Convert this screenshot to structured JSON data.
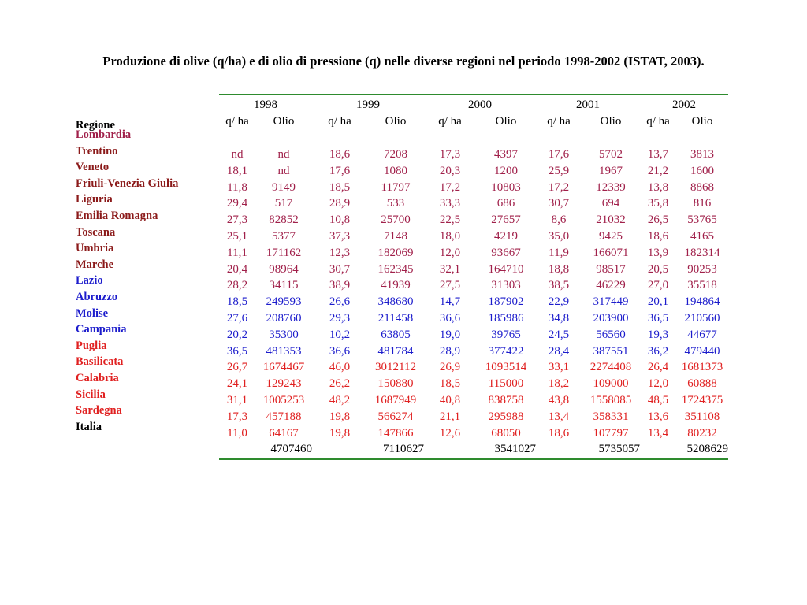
{
  "title": "Produzione di olive (q/ha) e di olio di pressione (q) nelle diverse regioni nel periodo 1998-2002 (ISTAT, 2003).",
  "regione_header": "Regione",
  "colors": {
    "dark_red": "#8b1a1a",
    "crimson": "#a0204a",
    "blue": "#1c1ccc",
    "red": "#e02020",
    "rule": "#2e8b2e"
  },
  "years": [
    "1998",
    "1999",
    "2000",
    "2001",
    "2002"
  ],
  "sub_headers": [
    "q/ ha",
    "Olio",
    "q/ ha",
    "Olio",
    "q/ ha",
    "Olio",
    "q/ ha",
    "Olio",
    "q/ ha",
    "Olio"
  ],
  "regions": [
    {
      "name": "Lombardia",
      "color": "#a0204a"
    },
    {
      "name": "Trentino",
      "color": "#8b1a1a"
    },
    {
      "name": "Veneto",
      "color": "#8b1a1a"
    },
    {
      "name": "Friuli-Venezia Giulia",
      "color": "#8b1a1a"
    },
    {
      "name": "Liguria",
      "color": "#8b1a1a"
    },
    {
      "name": "Emilia Romagna",
      "color": "#8b1a1a"
    },
    {
      "name": "Toscana",
      "color": "#8b1a1a"
    },
    {
      "name": "Umbria",
      "color": "#8b1a1a"
    },
    {
      "name": "Marche",
      "color": "#8b1a1a"
    },
    {
      "name": "Lazio",
      "color": "#1c1ccc"
    },
    {
      "name": "Abruzzo",
      "color": "#1c1ccc"
    },
    {
      "name": "Molise",
      "color": "#1c1ccc"
    },
    {
      "name": "Campania",
      "color": "#1c1ccc"
    },
    {
      "name": "Puglia",
      "color": "#e02020"
    },
    {
      "name": "Basilicata",
      "color": "#e02020"
    },
    {
      "name": "Calabria",
      "color": "#e02020"
    },
    {
      "name": "Sicilia",
      "color": "#e02020"
    },
    {
      "name": "Sardegna",
      "color": "#e02020"
    },
    {
      "name": "Italia",
      "color": "#000000"
    }
  ],
  "rows": [
    {
      "color": "#a0204a",
      "values": [
        "nd",
        "nd",
        "18,6",
        "7208",
        "17,3",
        "4397",
        "17,6",
        "5702",
        "13,7",
        "3813"
      ]
    },
    {
      "color": "#a0204a",
      "values": [
        "18,1",
        "nd",
        "17,6",
        "1080",
        "20,3",
        "1200",
        "25,9",
        "1967",
        "21,2",
        "1600"
      ]
    },
    {
      "color": "#a0204a",
      "values": [
        "11,8",
        "9149",
        "18,5",
        "11797",
        "17,2",
        "10803",
        "17,2",
        "12339",
        "13,8",
        "8868"
      ]
    },
    {
      "color": "#a0204a",
      "values": [
        "29,4",
        "517",
        "28,9",
        "533",
        "33,3",
        "686",
        "30,7",
        "694",
        "35,8",
        "816"
      ]
    },
    {
      "color": "#a0204a",
      "values": [
        "27,3",
        "82852",
        "10,8",
        "25700",
        "22,5",
        "27657",
        "8,6",
        "21032",
        "26,5",
        "53765"
      ]
    },
    {
      "color": "#a0204a",
      "values": [
        "25,1",
        "5377",
        "37,3",
        "7148",
        "18,0",
        "4219",
        "35,0",
        "9425",
        "18,6",
        "4165"
      ]
    },
    {
      "color": "#a0204a",
      "values": [
        "11,1",
        "171162",
        "12,3",
        "182069",
        "12,0",
        "93667",
        "11,9",
        "166071",
        "13,9",
        "182314"
      ]
    },
    {
      "color": "#a0204a",
      "values": [
        "20,4",
        "98964",
        "30,7",
        "162345",
        "32,1",
        "164710",
        "18,8",
        "98517",
        "20,5",
        "90253"
      ]
    },
    {
      "color": "#a0204a",
      "values": [
        "28,2",
        "34115",
        "38,9",
        "41939",
        "27,5",
        "31303",
        "38,5",
        "46229",
        "27,0",
        "35518"
      ]
    },
    {
      "color": "#1c1ccc",
      "values": [
        "18,5",
        "249593",
        "26,6",
        "348680",
        "14,7",
        "187902",
        "22,9",
        "317449",
        "20,1",
        "194864"
      ]
    },
    {
      "color": "#1c1ccc",
      "values": [
        "27,6",
        "208760",
        "29,3",
        "211458",
        "36,6",
        "185986",
        "34,8",
        "203900",
        "36,5",
        "210560"
      ]
    },
    {
      "color": "#1c1ccc",
      "values": [
        "20,2",
        "35300",
        "10,2",
        "63805",
        "19,0",
        "39765",
        "24,5",
        "56560",
        "19,3",
        "44677"
      ]
    },
    {
      "color": "#1c1ccc",
      "values": [
        "36,5",
        "481353",
        "36,6",
        "481784",
        "28,9",
        "377422",
        "28,4",
        "387551",
        "36,2",
        "479440"
      ]
    },
    {
      "color": "#e02020",
      "values": [
        "26,7",
        "1674467",
        "46,0",
        "3012112",
        "26,9",
        "1093514",
        "33,1",
        "2274408",
        "26,4",
        "1681373"
      ]
    },
    {
      "color": "#e02020",
      "values": [
        "24,1",
        "129243",
        "26,2",
        "150880",
        "18,5",
        "115000",
        "18,2",
        "109000",
        "12,0",
        "60888"
      ]
    },
    {
      "color": "#e02020",
      "values": [
        "31,1",
        "1005253",
        "48,2",
        "1687949",
        "40,8",
        "838758",
        "43,8",
        "1558085",
        "48,5",
        "1724375"
      ]
    },
    {
      "color": "#e02020",
      "values": [
        "17,3",
        "457188",
        "19,8",
        "566274",
        "21,1",
        "295988",
        "13,4",
        "358331",
        "13,6",
        "351108"
      ]
    },
    {
      "color": "#e02020",
      "values": [
        "11,0",
        "64167",
        "19,8",
        "147866",
        "12,6",
        "68050",
        "18,6",
        "107797",
        "13,4",
        "80232"
      ]
    }
  ],
  "totals": [
    "4707460",
    "7110627",
    "3541027",
    "5735057",
    "5208629"
  ]
}
